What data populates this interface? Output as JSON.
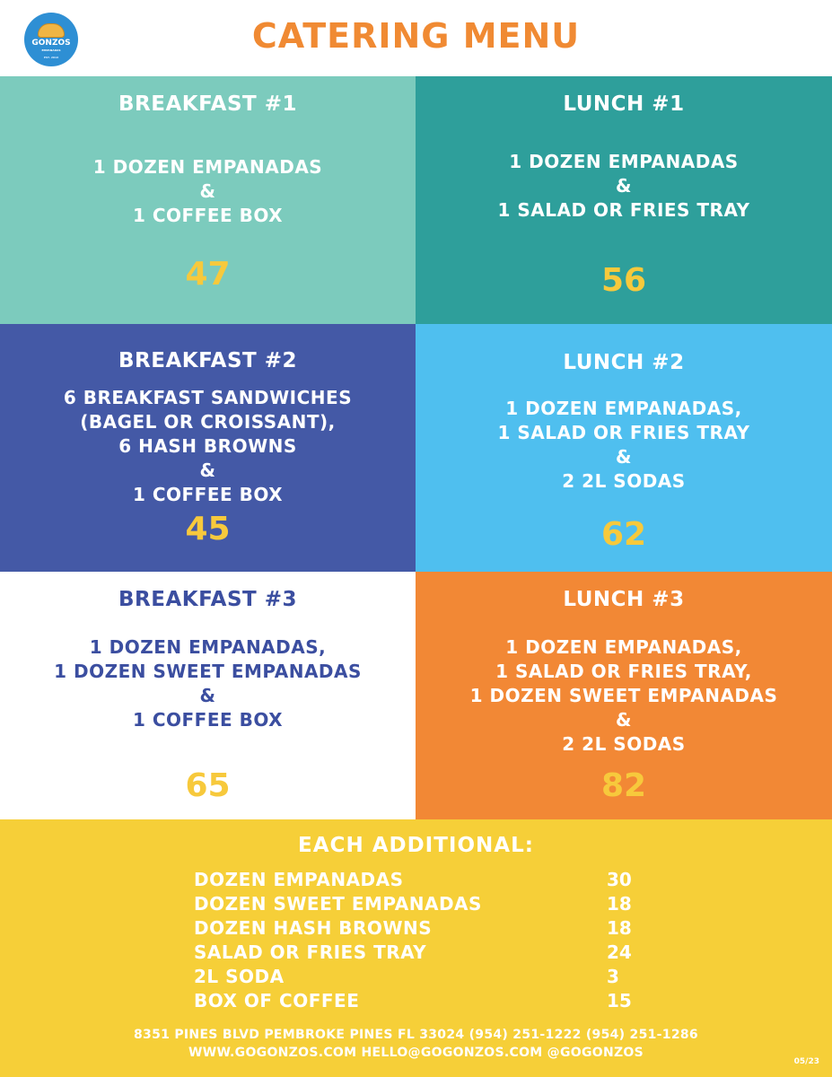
{
  "header": {
    "title": "CATERING MENU",
    "logo_text": "GONZOS",
    "logo_sub": "EMPANADAS",
    "logo_est": "EST. 2016"
  },
  "packages": {
    "breakfast1": {
      "name": "BREAKFAST #1",
      "items": [
        "1 DOZEN EMPANADAS",
        "&",
        "1 COFFEE BOX"
      ],
      "price": "47"
    },
    "lunch1": {
      "name": "LUNCH #1",
      "items": [
        "1 DOZEN EMPANADAS",
        "&",
        "1 SALAD OR FRIES TRAY"
      ],
      "price": "56"
    },
    "breakfast2": {
      "name": "BREAKFAST #2",
      "items": [
        "6 BREAKFAST SANDWICHES",
        "(BAGEL OR CROISSANT),",
        "6 HASH BROWNS",
        "&",
        "1 COFFEE BOX"
      ],
      "price": "45"
    },
    "lunch2": {
      "name": "LUNCH #2",
      "items": [
        "1 DOZEN EMPANADAS,",
        "1 SALAD OR FRIES TRAY",
        "&",
        "2 2L SODAS"
      ],
      "price": "62"
    },
    "breakfast3": {
      "name": "BREAKFAST #3",
      "items": [
        "1 DOZEN EMPANADAS,",
        "1 DOZEN SWEET EMPANADAS",
        "&",
        "1 COFFEE BOX"
      ],
      "price": "65"
    },
    "lunch3": {
      "name": "LUNCH #3",
      "items": [
        "1 DOZEN EMPANADAS,",
        "1 SALAD OR FRIES TRAY,",
        "1 DOZEN SWEET EMPANADAS",
        "&",
        "2 2L SODAS"
      ],
      "price": "82"
    }
  },
  "additional": {
    "title": "EACH ADDITIONAL:",
    "items": [
      {
        "name": "DOZEN EMPANADAS",
        "price": "30"
      },
      {
        "name": "DOZEN SWEET EMPANADAS",
        "price": "18"
      },
      {
        "name": "DOZEN HASH BROWNS",
        "price": "18"
      },
      {
        "name": "SALAD OR FRIES TRAY",
        "price": "24"
      },
      {
        "name": "2L SODA",
        "price": "3"
      },
      {
        "name": "BOX OF COFFEE",
        "price": "15"
      }
    ]
  },
  "footer": {
    "address_line": "8351 PINES BLVD  PEMBROKE PINES FL 33024 (954) 251-1222  (954) 251-1286",
    "web_line": "WWW.GOGONZOS.COM  HELLO@GOGONZOS.COM  @GOGONZOS",
    "date_code": "05/23"
  }
}
